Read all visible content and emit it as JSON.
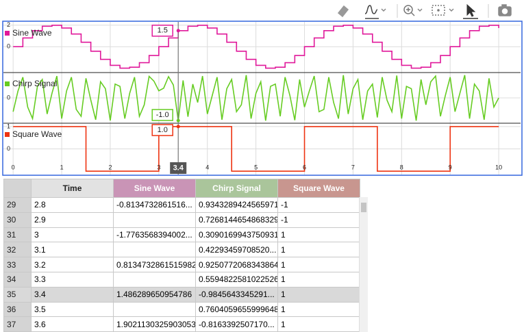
{
  "chart_data": {
    "type": "line",
    "x": [
      0,
      0.1,
      0.2,
      0.3,
      0.4,
      0.5,
      0.6,
      0.7,
      0.8,
      0.9,
      1,
      1.1,
      1.2,
      1.3,
      1.4,
      1.5,
      1.6,
      1.7,
      1.8,
      1.9,
      2,
      2.1,
      2.2,
      2.3,
      2.4,
      2.5,
      2.6,
      2.7,
      2.8,
      2.9,
      3,
      3.1,
      3.2,
      3.3,
      3.4,
      3.5,
      3.6,
      3.7,
      3.8,
      3.9,
      4,
      4.1,
      4.2,
      4.3,
      4.4,
      4.5,
      4.6,
      4.7,
      4.8,
      4.9,
      5,
      5.1,
      5.2,
      5.3,
      5.4,
      5.5,
      5.6,
      5.7,
      5.8,
      5.9,
      6,
      6.1,
      6.2,
      6.3,
      6.4,
      6.5,
      6.6,
      6.7,
      6.8,
      6.9,
      7,
      7.1,
      7.2,
      7.3,
      7.4,
      7.5,
      7.6,
      7.7,
      7.8,
      7.9,
      8,
      8.1,
      8.2,
      8.3,
      8.4,
      8.5,
      8.6,
      8.7,
      8.8,
      8.9,
      9,
      9.1,
      9.2,
      9.3,
      9.4,
      9.5,
      9.6,
      9.7,
      9.8,
      9.9,
      10
    ],
    "xlim": [
      -0.2,
      10.45
    ],
    "xticks": [
      0,
      1,
      2,
      3,
      4,
      5,
      6,
      7,
      8,
      9,
      10
    ],
    "grid": true,
    "series": [
      {
        "name": "Sine Wave",
        "color": "#e0189a",
        "line_shape": "hv",
        "connect_gaps": true,
        "ylim": [
          -2.4,
          2.3
        ],
        "yticks": [
          0,
          2
        ],
        "values": [
          0,
          null,
          0.813,
          null,
          1.486,
          null,
          1.902,
          null,
          1.989,
          null,
          1.732,
          null,
          1.176,
          null,
          0.416,
          null,
          -0.416,
          null,
          -1.176,
          null,
          -1.732,
          null,
          -1.989,
          null,
          -1.902,
          null,
          -1.486,
          null,
          -0.8134732861516,
          null,
          -1.7763568394002e-15,
          null,
          0.8134732861515982,
          null,
          1.486289650954786,
          null,
          1.9021130325903053,
          null,
          1.989,
          null,
          1.732,
          null,
          1.176,
          null,
          0.416,
          null,
          -0.416,
          null,
          -1.176,
          null,
          -1.732,
          null,
          -1.989,
          null,
          -1.902,
          null,
          -1.486,
          null,
          -0.813,
          null,
          0,
          null,
          0.813,
          null,
          1.486,
          null,
          1.902,
          null,
          1.989,
          null,
          1.732,
          null,
          1.176,
          null,
          0.416,
          null,
          -0.416,
          null,
          -1.176,
          null,
          -1.732,
          null,
          -1.989,
          null,
          -1.902,
          null,
          -1.486,
          null,
          -0.813,
          null,
          0,
          null,
          0.813,
          null,
          1.486,
          null,
          1.902,
          null,
          1.989,
          null,
          1.732
        ]
      },
      {
        "name": "Chirp Signal",
        "color": "#66cc22",
        "line_shape": "linear",
        "connect_gaps": true,
        "ylim": [
          -1.1,
          1.1
        ],
        "yticks": [
          0
        ],
        "values": [
          -0.6,
          0.3,
          0.9,
          -0.4,
          -0.9,
          0.5,
          0.8,
          -0.7,
          0.2,
          0.95,
          -0.9,
          0.3,
          0.9,
          -0.5,
          -0.8,
          0.85,
          -0.1,
          -0.95,
          0.7,
          0.4,
          -0.98,
          0.6,
          0.5,
          -0.9,
          0.2,
          0.9,
          -0.8,
          -0.3,
          0.9343289424565971,
          0.7268144654868329,
          0.3090169943750931,
          0.4229345970852,
          0.9250772068343864,
          0.5594822581022526,
          -0.9845643345291,
          0.7604059655999648,
          -0.816339250717,
          0.6,
          -0.2,
          0.95,
          -0.7,
          0.1,
          0.9,
          -0.95,
          0.4,
          0.8,
          -0.6,
          -0.3,
          0.99,
          -0.9,
          0.2,
          0.7,
          -0.99,
          0.5,
          0.6,
          -0.8,
          0.9,
          0.1,
          -0.97,
          0.8,
          -0.4,
          0.3,
          0.95,
          -0.6,
          -0.5,
          0.9,
          -0.2,
          -0.9,
          0.99,
          -0.7,
          0.4,
          0.8,
          -0.95,
          0.3,
          0.6,
          -0.85,
          0.9,
          -0.1,
          -0.6,
          0.97,
          -0.9,
          0.5,
          0.4,
          -0.99,
          0.8,
          -0.3,
          0.7,
          0.95,
          -0.8,
          0.1,
          0.9,
          -0.6,
          0.2,
          0.99,
          -0.9,
          0.6,
          0.3,
          -0.95,
          0.85,
          -0.4,
          0
        ]
      },
      {
        "name": "Square Wave",
        "color": "#ee3311",
        "line_shape": "hv",
        "connect_gaps": true,
        "ylim": [
          -1.15,
          1.15
        ],
        "yticks": [
          0,
          1
        ],
        "values": [
          1,
          1,
          1,
          1,
          1,
          1,
          1,
          1,
          1,
          1,
          1,
          1,
          1,
          1,
          1,
          -1,
          -1,
          -1,
          -1,
          -1,
          -1,
          -1,
          -1,
          -1,
          -1,
          -1,
          -1,
          -1,
          -1,
          -1,
          1,
          1,
          1,
          1,
          1,
          1,
          1,
          1,
          1,
          1,
          1,
          1,
          1,
          1,
          1,
          -1,
          -1,
          -1,
          -1,
          -1,
          -1,
          -1,
          -1,
          -1,
          -1,
          -1,
          -1,
          -1,
          -1,
          -1,
          1,
          1,
          1,
          1,
          1,
          1,
          1,
          1,
          1,
          1,
          1,
          1,
          1,
          1,
          1,
          -1,
          -1,
          -1,
          -1,
          -1,
          -1,
          -1,
          -1,
          -1,
          -1,
          -1,
          -1,
          -1,
          -1,
          -1,
          1,
          1,
          1,
          1,
          1,
          1,
          1,
          1,
          1,
          1,
          1
        ]
      }
    ],
    "hover": {
      "x": {
        "value": 3.4,
        "label": "3.4"
      },
      "values": [
        {
          "value": 1.486289650954786,
          "label": "1.5"
        },
        {
          "value": -0.9845643345291,
          "label": "-1.0"
        },
        {
          "value": 1,
          "label": "1.0"
        }
      ]
    }
  },
  "table": {
    "columns": [
      "Time",
      "Sine Wave",
      "Chirp Signal",
      "Square Wave"
    ],
    "rows": [
      [
        "29",
        "2.8",
        "-0.8134732861516...",
        "0.9343289424565971",
        "-1"
      ],
      [
        "30",
        "2.9",
        null,
        "0.7268144654868329",
        "-1"
      ],
      [
        "31",
        "3",
        "-1.7763568394002...",
        "0.3090169943750931",
        "1"
      ],
      [
        "32",
        "3.1",
        null,
        "0.42293459708520...",
        "1"
      ],
      [
        "33",
        "3.2",
        "0.8134732861515982",
        "0.9250772068343864",
        "1"
      ],
      [
        "34",
        "3.3",
        null,
        "0.5594822581022526",
        "1"
      ],
      [
        "35",
        "3.4",
        "1.486289650954786",
        "-0.9845643345291...",
        "1"
      ],
      [
        "36",
        "3.5",
        null,
        "0.7604059655999648",
        "1"
      ],
      [
        "37",
        "3.6",
        "1.9021130325903053",
        "-0.8163392507170...",
        "1"
      ]
    ]
  }
}
